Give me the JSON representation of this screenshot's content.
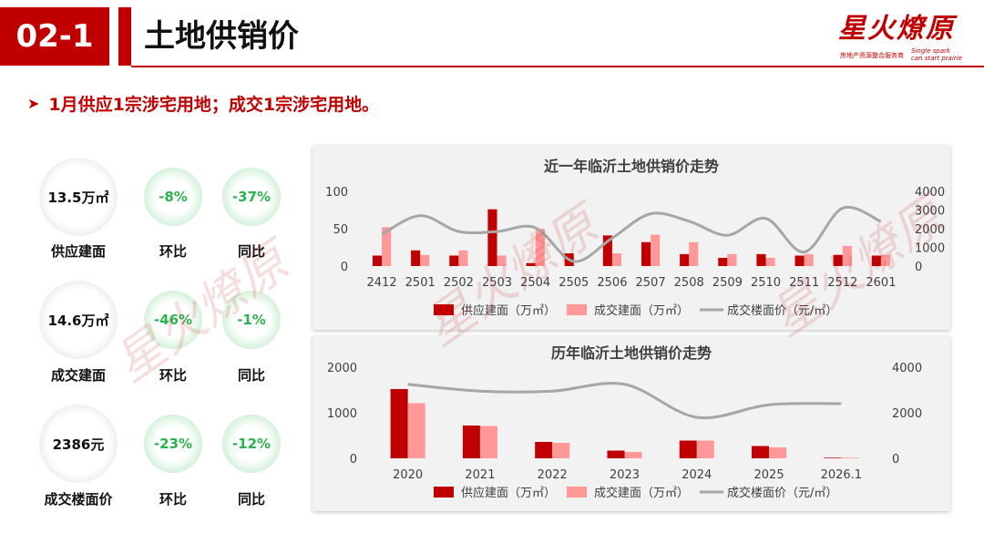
{
  "header": {
    "code": "02-1",
    "title": "土地供销价"
  },
  "logo": {
    "text": "星火燎原",
    "sub": "房地产资源整合服务商",
    "en1": "Single spark",
    "en2": "can start prairie"
  },
  "bullet": {
    "text": "1月供应1宗涉宅用地；成交1宗涉宅用地。"
  },
  "metrics": [
    {
      "value": "13.5万㎡",
      "label": "供应建面",
      "mom": "-8%",
      "mom_label": "环比",
      "yoy": "-37%",
      "yoy_label": "同比"
    },
    {
      "value": "14.6万㎡",
      "label": "成交建面",
      "mom": "-46%",
      "mom_label": "环比",
      "yoy": "-1%",
      "yoy_label": "同比"
    },
    {
      "value": "2386元",
      "label": "成交楼面价",
      "mom": "-23%",
      "mom_label": "环比",
      "yoy": "-12%",
      "yoy_label": "同比"
    }
  ],
  "colors": {
    "supply": "#c00000",
    "deal": "#ff9999",
    "price": "#a6a6a6",
    "brand": "#c00000",
    "pct": "#2bb24c"
  },
  "chart_data": [
    {
      "type": "bar",
      "title": "近一年临沂土地供销价走势",
      "categories": [
        "2412",
        "2501",
        "2502",
        "2503",
        "2504",
        "2505",
        "2506",
        "2507",
        "2508",
        "2509",
        "2510",
        "2511",
        "2512",
        "2601"
      ],
      "series": [
        {
          "name": "供应建面（万㎡）",
          "axis": "left",
          "values": [
            14,
            21,
            14,
            76,
            4,
            17,
            41,
            32,
            16,
            11,
            16,
            14,
            15,
            14
          ]
        },
        {
          "name": "成交建面（万㎡）",
          "axis": "left",
          "values": [
            52,
            15,
            21,
            14,
            50,
            0,
            17,
            42,
            32,
            16,
            11,
            16,
            27,
            15
          ]
        },
        {
          "name": "成交楼面价（元/㎡）",
          "type": "line",
          "axis": "right",
          "values": [
            1700,
            2700,
            1850,
            1850,
            2050,
            250,
            1500,
            2800,
            2400,
            1650,
            2550,
            750,
            3100,
            2386
          ]
        }
      ],
      "ylim": [
        0,
        100
      ],
      "yticks": [
        0,
        50,
        100
      ],
      "y2lim": [
        0,
        4000
      ],
      "y2ticks": [
        0,
        1000,
        2000,
        3000,
        4000
      ],
      "legend": "bottom"
    },
    {
      "type": "bar",
      "title": "历年临沂土地供销价走势",
      "categories": [
        "2020",
        "2021",
        "2022",
        "2023",
        "2024",
        "2025",
        "2026.1"
      ],
      "series": [
        {
          "name": "供应建面（万㎡）",
          "axis": "left",
          "values": [
            1520,
            720,
            360,
            170,
            390,
            270,
            14
          ]
        },
        {
          "name": "成交建面（万㎡）",
          "axis": "left",
          "values": [
            1210,
            710,
            340,
            140,
            390,
            240,
            15
          ]
        },
        {
          "name": "成交楼面价（元/㎡）",
          "type": "line",
          "axis": "right",
          "values": [
            3250,
            2950,
            2950,
            3250,
            1800,
            2350,
            2400
          ]
        }
      ],
      "ylim": [
        0,
        2000
      ],
      "yticks": [
        0,
        1000,
        2000
      ],
      "y2lim": [
        0,
        4000
      ],
      "y2ticks": [
        0,
        2000,
        4000
      ],
      "legend": "bottom"
    }
  ]
}
